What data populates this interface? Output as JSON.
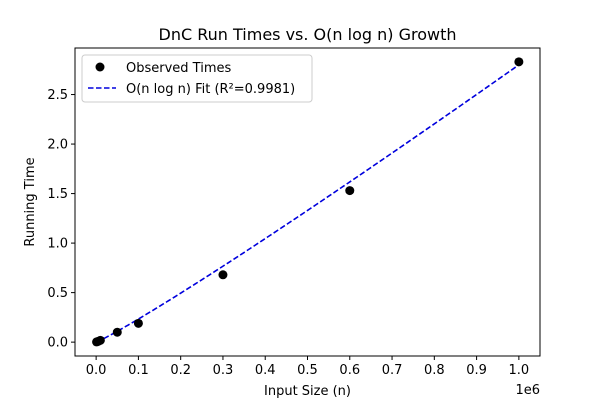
{
  "chart_data": {
    "type": "scatter",
    "title": "DnC Run Times vs. O(n log n) Growth",
    "xlabel": "Input Size (n)",
    "ylabel": "Running Time",
    "x_offset_label": "1e6",
    "xlim": [
      -50000,
      1050000
    ],
    "ylim": [
      -0.14,
      2.97
    ],
    "x_ticks": [
      0,
      100000,
      200000,
      300000,
      400000,
      500000,
      600000,
      700000,
      800000,
      900000,
      1000000
    ],
    "x_tick_labels": [
      "0.0",
      "0.1",
      "0.2",
      "0.3",
      "0.4",
      "0.5",
      "0.6",
      "0.7",
      "0.8",
      "0.9",
      "1.0"
    ],
    "y_ticks": [
      0.0,
      0.5,
      1.0,
      1.5,
      2.0,
      2.5
    ],
    "y_tick_labels": [
      "0.0",
      "0.5",
      "1.0",
      "1.5",
      "2.0",
      "2.5"
    ],
    "grid": false,
    "legend_position": "upper-left",
    "series": [
      {
        "name": "Observed Times",
        "kind": "scatter",
        "color": "#000000",
        "x": [
          1000,
          5000,
          10000,
          50000,
          100000,
          300000,
          600000,
          1000000
        ],
        "y": [
          0.002,
          0.008,
          0.018,
          0.1,
          0.19,
          0.68,
          1.53,
          2.83
        ]
      },
      {
        "name": "O(n log n) Fit (R²=0.9981)",
        "kind": "line",
        "style": "dashed",
        "color": "#0000dd",
        "model": "a*n*log(n)",
        "coefficient": 2.0267e-07,
        "x_range": [
          1000,
          1000000
        ]
      }
    ]
  }
}
